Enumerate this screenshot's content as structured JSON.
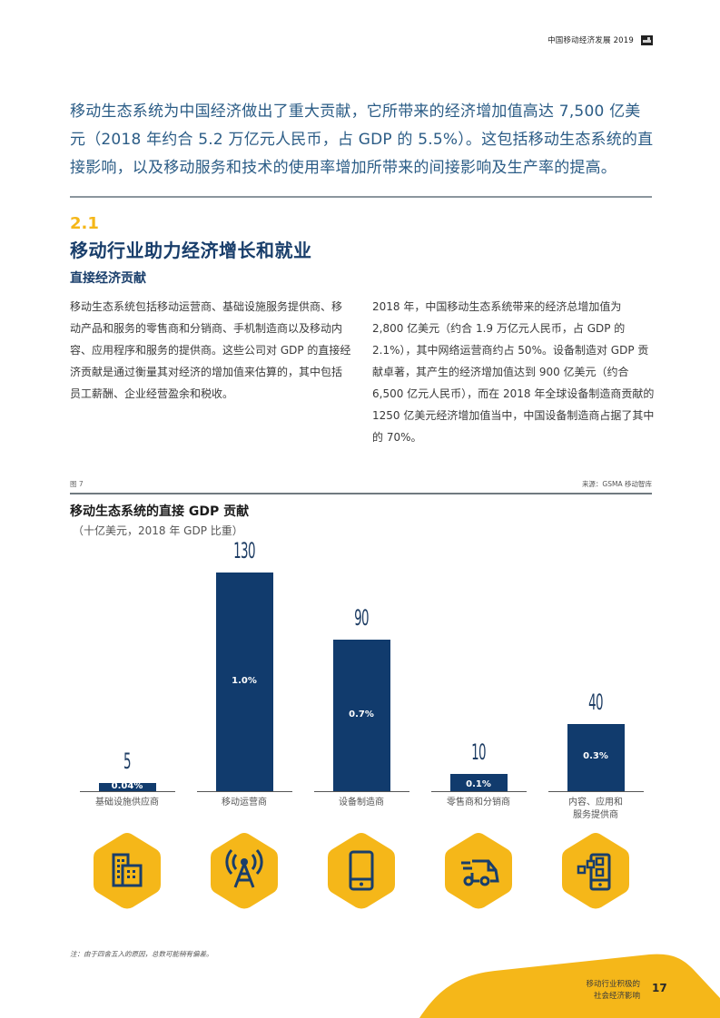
{
  "header": {
    "title": "中国移动经济发展 2019",
    "logo_icon": "gsma-logo-icon"
  },
  "intro": {
    "text": "移动生态系统为中国经济做出了重大贡献，它所带来的经济增加值高达 7,500 亿美元（2018 年约合 5.2 万亿元人民币，占 GDP 的 5.5%）。这包括移动生态系统的直接影响，以及移动服务和技术的使用率增加所带来的间接影响及生产率的提高。"
  },
  "section": {
    "number": "2.1",
    "title": "移动行业助力经济增长和就业",
    "subtitle": "直接经济贡献"
  },
  "body": {
    "left": "移动生态系统包括移动运营商、基础设施服务提供商、移动产品和服务的零售商和分销商、手机制造商以及移动内容、应用程序和服务的提供商。这些公司对 GDP 的直接经济贡献是通过衡量其对经济的增加值来估算的，其中包括员工薪酬、企业经营盈余和税收。",
    "right": "2018 年，中国移动生态系统带来的经济总增加值为 2,800 亿美元（约合 1.9 万亿元人民币，占 GDP 的 2.1%），其中网络运营商约占 50%。设备制造对 GDP 贡献卓著，其产生的经济增加值达到 900 亿美元（约合 6,500 亿元人民币），而在 2018 年全球设备制造商贡献的 1250 亿美元经济增加值当中，中国设备制造商占据了其中的 70%。"
  },
  "figure": {
    "label": "图 7",
    "source": "来源：GSMA 移动智库",
    "note": "注：由于四舍五入的原因，总数可能稍有偏差。"
  },
  "chart_data": {
    "type": "bar",
    "title": "移动生态系统的直接 GDP 贡献",
    "subtitle": "（十亿美元，2018 年 GDP 比重）",
    "xlabel": "",
    "ylabel": "十亿美元",
    "ylim": [
      0,
      130
    ],
    "grid": false,
    "legend": null,
    "categories": [
      "基础设施供应商",
      "移动运营商",
      "设备制造商",
      "零售商和分销商",
      "内容、应用和服务提供商"
    ],
    "category_lines": [
      [
        "基础设施供应商"
      ],
      [
        "移动运营商"
      ],
      [
        "设备制造商"
      ],
      [
        "零售商和分销商"
      ],
      [
        "内容、应用和",
        "服务提供商"
      ]
    ],
    "values": [
      5,
      130,
      90,
      10,
      40
    ],
    "value_labels": [
      "5",
      "130",
      "90",
      "10",
      "40"
    ],
    "gdp_share_labels": [
      "0.04%",
      "1.0%",
      "0.7%",
      "0.1%",
      "0.3%"
    ],
    "bar_color": "#113b6d",
    "icons": [
      "buildings-icon",
      "radio-tower-icon",
      "mobile-phone-icon",
      "delivery-van-icon",
      "phone-apps-icon"
    ],
    "icon_bg_color": "#f5b719"
  },
  "footer": {
    "line1": "移动行业积极的",
    "line2": "社会经济影响",
    "page_number": "17",
    "accent_color": "#f5b719"
  },
  "colors": {
    "navy": "#193e6b",
    "intro_blue": "#2b5c86",
    "yellow": "#f5b719"
  }
}
